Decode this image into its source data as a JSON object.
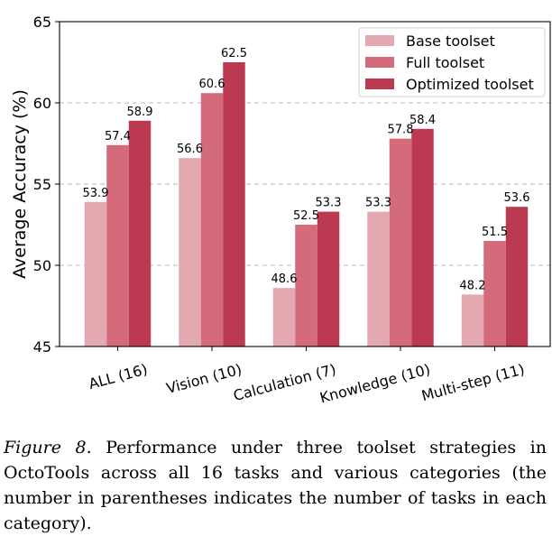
{
  "chart_data": {
    "type": "bar",
    "title": "",
    "xlabel": "",
    "ylabel": "Average Accuracy (%)",
    "ylim": [
      45,
      65
    ],
    "yticks": [
      45,
      50,
      55,
      60,
      65
    ],
    "grid": "y-dashed",
    "legend_position": "top-right",
    "categories": [
      "ALL (16)",
      "Vision (10)",
      "Calculation (7)",
      "Knowledge (10)",
      "Multi-step (11)"
    ],
    "series": [
      {
        "name": "Base toolset",
        "color": "#e4a8b0",
        "values": [
          53.9,
          56.6,
          48.6,
          53.3,
          48.2
        ]
      },
      {
        "name": "Full toolset",
        "color": "#d46b7b",
        "values": [
          57.4,
          60.6,
          52.5,
          57.8,
          51.5
        ]
      },
      {
        "name": "Optimized toolset",
        "color": "#bc3a51",
        "values": [
          58.9,
          62.5,
          53.3,
          58.4,
          53.6
        ]
      }
    ]
  },
  "caption": {
    "label": "Figure 8.",
    "text": " Performance under three toolset strategies in OctoTools across all 16 tasks and various categories (the number in parentheses indicates the number of tasks in each category)."
  }
}
